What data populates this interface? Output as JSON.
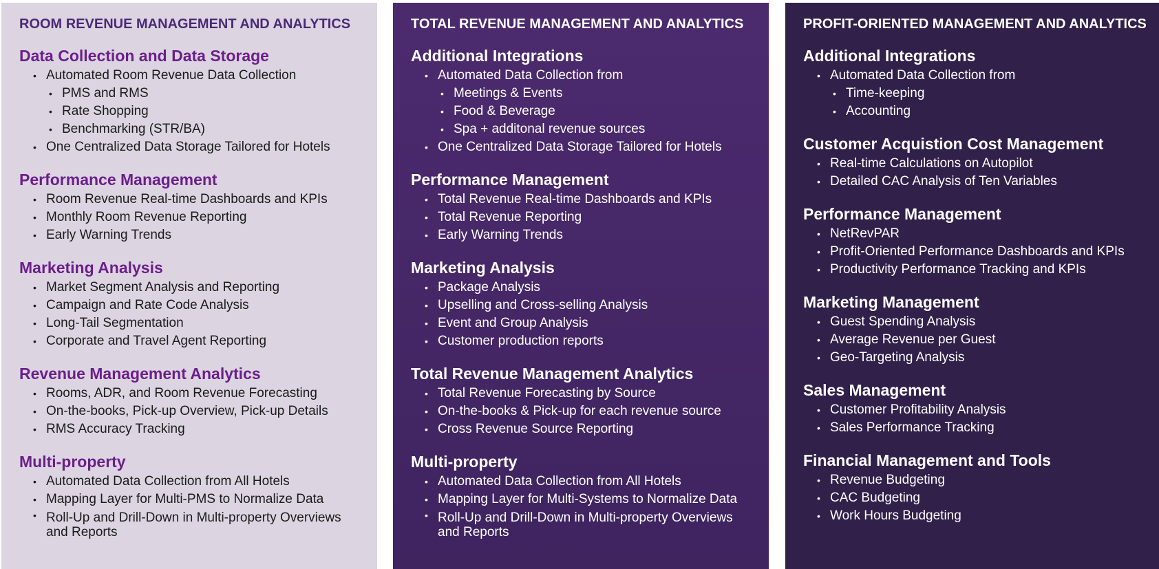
{
  "columns": [
    {
      "title": "ROOM REVENUE MANAGEMENT AND ANALYTICS",
      "sections": [
        {
          "heading": "Data Collection and Data Storage",
          "items": [
            "Automated Room Revenue Data Collection",
            "PMS and RMS",
            "Rate Shopping",
            "Benchmarking (STR/BA)",
            "One Centralized Data Storage Tailored for Hotels"
          ]
        },
        {
          "heading": "Performance Management",
          "items": [
            "Room Revenue Real-time Dashboards and KPIs",
            "Monthly Room Revenue Reporting",
            "Early Warning Trends"
          ]
        },
        {
          "heading": "Marketing Analysis",
          "items": [
            "Market Segment Analysis and Reporting",
            "Campaign and Rate Code Analysis",
            "Long-Tail Segmentation",
            "Corporate and Travel Agent Reporting"
          ]
        },
        {
          "heading": "Revenue Management Analytics",
          "items": [
            "Rooms, ADR, and Room Revenue Forecasting",
            "On-the-books, Pick-up Overview, Pick-up Details",
            "RMS Accuracy Tracking"
          ]
        },
        {
          "heading": "Multi-property",
          "items": [
            "Automated Data Collection from All Hotels",
            "Mapping Layer for Multi-PMS to Normalize Data",
            "Roll-Up and Drill-Down in Multi-property Overviews and Reports"
          ]
        }
      ]
    },
    {
      "title": "TOTAL REVENUE MANAGEMENT AND ANALYTICS",
      "sections": [
        {
          "heading": "Additional Integrations",
          "items": [
            "Automated Data Collection from",
            "Meetings & Events",
            "Food & Beverage",
            "Spa + additonal revenue sources",
            "One Centralized Data Storage Tailored for Hotels"
          ]
        },
        {
          "heading": "Performance Management",
          "items": [
            "Total Revenue Real-time Dashboards and KPIs",
            "Total Revenue Reporting",
            "Early Warning Trends"
          ]
        },
        {
          "heading": "Marketing Analysis",
          "items": [
            "Package Analysis",
            "Upselling and Cross-selling Analysis",
            "Event and Group Analysis",
            "Customer production reports"
          ]
        },
        {
          "heading": "Total Revenue Management Analytics",
          "items": [
            "Total Revenue Forecasting by Source",
            "On-the-books & Pick-up for each revenue source",
            "Cross Revenue Source Reporting"
          ]
        },
        {
          "heading": "Multi-property",
          "items": [
            "Automated Data Collection from All Hotels",
            "Mapping Layer for Multi-Systems to Normalize Data",
            "Roll-Up and Drill-Down in Multi-property Overviews and Reports"
          ]
        }
      ]
    },
    {
      "title": "PROFIT-ORIENTED MANAGEMENT AND ANALYTICS",
      "sections": [
        {
          "heading": "Additional Integrations",
          "items": [
            "Automated Data Collection from",
            "Time-keeping",
            "Accounting"
          ]
        },
        {
          "heading": "Customer Acquistion Cost Management",
          "items": [
            "Real-time Calculations on Autopilot",
            "Detailed CAC Analysis of Ten Variables"
          ]
        },
        {
          "heading": "Performance Management",
          "items": [
            "NetRevPAR",
            "Profit-Oriented Performance Dashboards and KPIs",
            "Productivity Performance Tracking and KPIs"
          ]
        },
        {
          "heading": "Marketing Management",
          "items": [
            "Guest Spending Analysis",
            "Average Revenue per Guest",
            "Geo-Targeting Analysis"
          ]
        },
        {
          "heading": "Sales Management",
          "items": [
            "Customer Profitability Analysis",
            "Sales Performance Tracking"
          ]
        },
        {
          "heading": "Financial Management and Tools",
          "items": [
            "Revenue Budgeting",
            "CAC Budgeting",
            "Work Hours Budgeting"
          ]
        }
      ]
    }
  ]
}
